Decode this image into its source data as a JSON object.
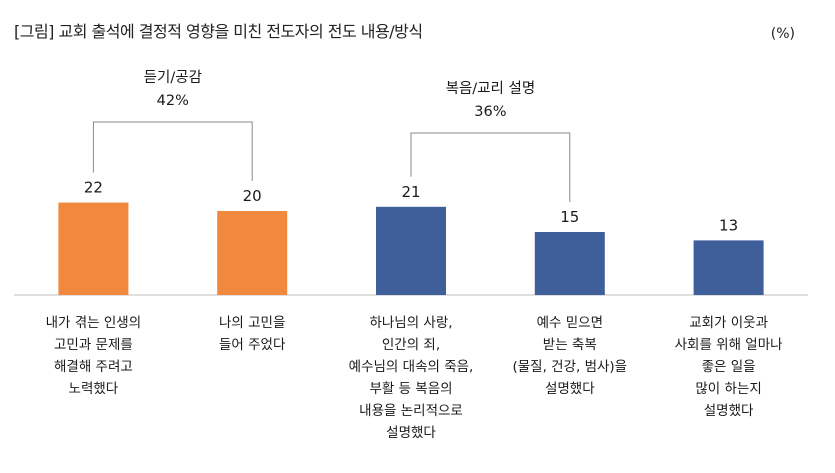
{
  "title": "[그림] 교회 출석에 결정적 영향을 미친 전도자의 전도 내용/방식",
  "unit": "(%)",
  "chart_data": {
    "type": "bar",
    "categories": [
      [
        "내가 겪는 인생의",
        "고민과 문제를",
        "해결해 주려고",
        "노력했다"
      ],
      [
        "나의 고민을",
        "들어 주었다"
      ],
      [
        "하나님의 사랑,",
        "인간의 죄,",
        "예수님의 대속의 죽음,",
        "부활 등 복음의",
        "내용을 논리적으로",
        "설명했다"
      ],
      [
        "예수 믿으면",
        "받는 축복",
        "(물질, 건강, 범사)을",
        "설명했다"
      ],
      [
        "교회가 이웃과",
        "사회를 위해 얼마나",
        "좋은 일을",
        "많이 하는지",
        "설명했다"
      ]
    ],
    "values": [
      22,
      20,
      21,
      15,
      13
    ],
    "colors": [
      "#F0883E",
      "#F0883E",
      "#3F5F9A",
      "#3F5F9A",
      "#3F5F9A"
    ],
    "ylim": [
      0,
      26
    ],
    "groups": [
      {
        "label": "듣기/공감",
        "value": "42%",
        "members": [
          0,
          1
        ]
      },
      {
        "label": "복음/교리 설명",
        "value": "36%",
        "members": [
          2,
          3
        ]
      }
    ]
  }
}
